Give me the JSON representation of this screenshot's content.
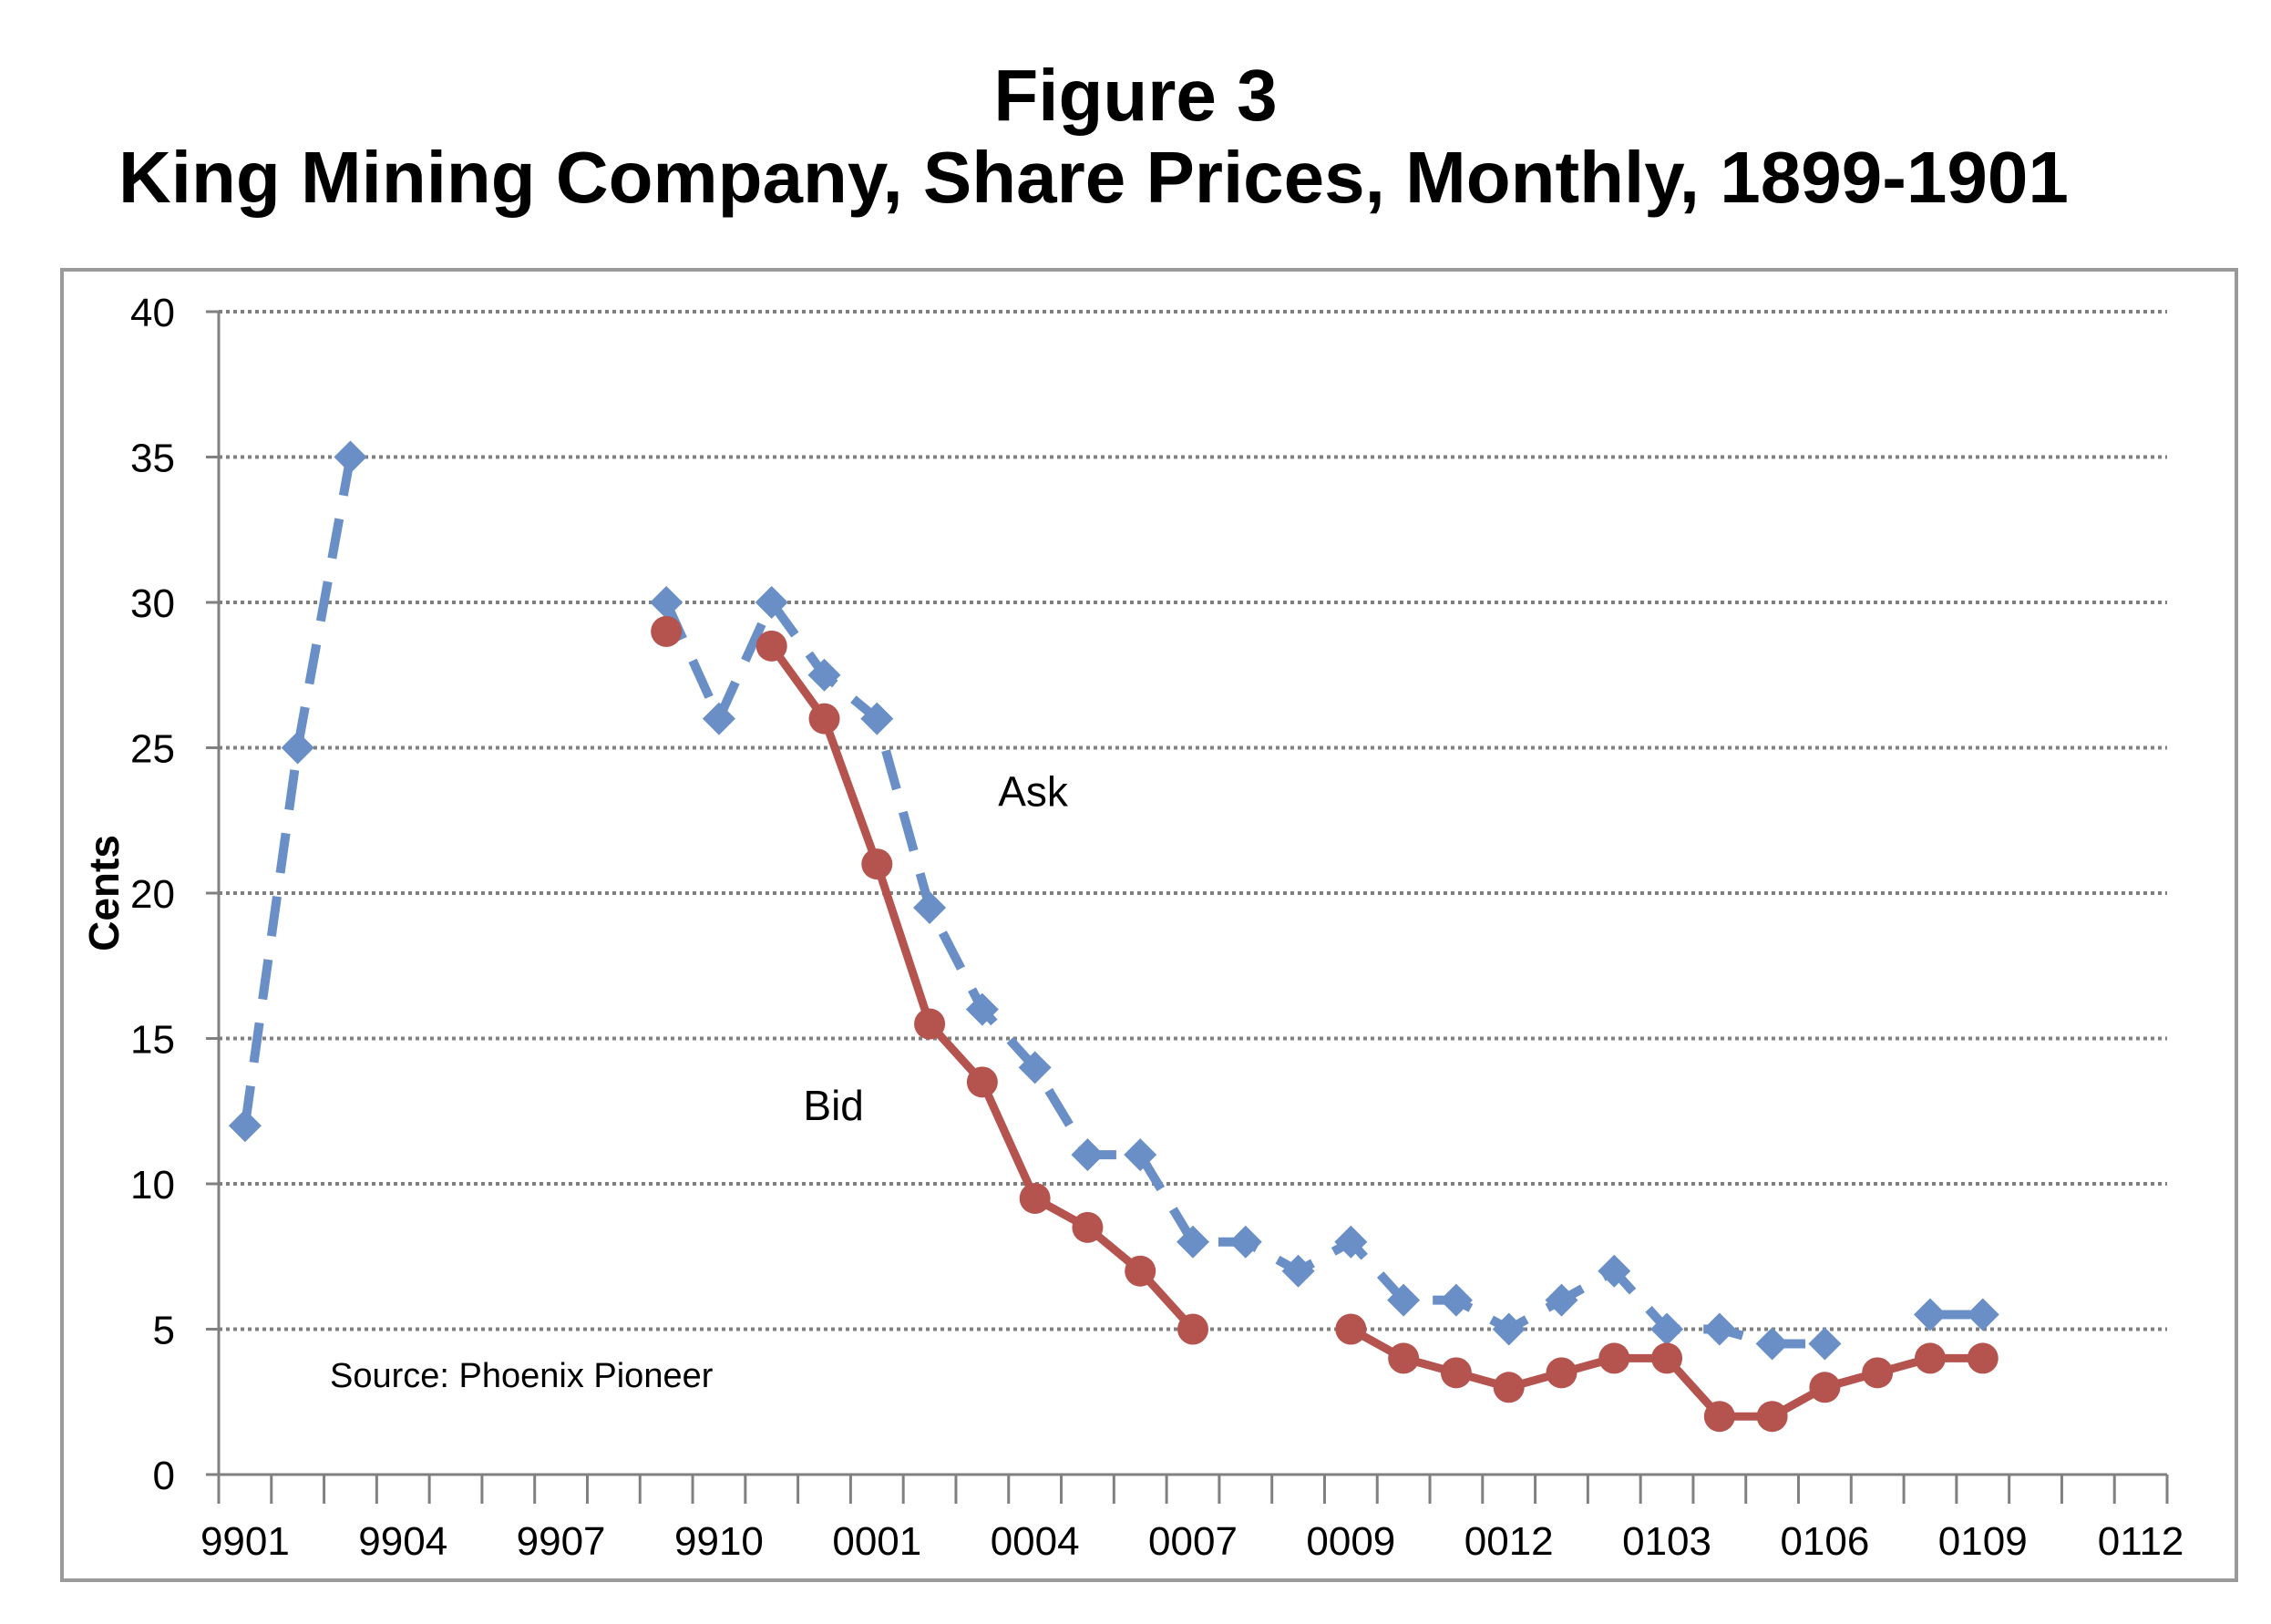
{
  "chart_data": {
    "type": "line",
    "title": "Figure 3",
    "subtitle": "King Mining Company, Share Prices, Monthly, 1899-1901",
    "ylabel": "Cents",
    "xlabel": "",
    "ylim": [
      0,
      40
    ],
    "y_ticks": [
      "0",
      "5",
      "10",
      "15",
      "20",
      "25",
      "30",
      "35",
      "40"
    ],
    "x_tick_labels": [
      "9901",
      "9904",
      "9907",
      "9910",
      "0001",
      "0004",
      "0007",
      "0009",
      "0012",
      "0103",
      "0106",
      "0109",
      "0112"
    ],
    "x_label_months": [
      0,
      3,
      6,
      9,
      12,
      15,
      18,
      21,
      24,
      27,
      30,
      33,
      36
    ],
    "grid": "horizontal dotted",
    "source_note": "Source: Phoenix Pioneer",
    "annotations": [
      {
        "text": "Ask",
        "month": 14.3,
        "value": 23
      },
      {
        "text": "Bid",
        "month": 10.6,
        "value": 12.2
      }
    ],
    "series": [
      {
        "name": "Ask",
        "color": "#6a8fc7",
        "style": "dashed",
        "marker": "diamond",
        "points": [
          [
            0,
            12
          ],
          [
            1,
            25
          ],
          [
            2,
            35
          ],
          [
            8,
            30
          ],
          [
            9,
            26
          ],
          [
            10,
            30
          ],
          [
            11,
            27.5
          ],
          [
            12,
            26
          ],
          [
            13,
            19.5
          ],
          [
            14,
            16
          ],
          [
            15,
            14
          ],
          [
            16,
            11
          ],
          [
            17,
            11
          ],
          [
            18,
            8
          ],
          [
            19,
            8
          ],
          [
            20,
            7
          ],
          [
            21,
            8
          ],
          [
            22,
            6
          ],
          [
            23,
            6
          ],
          [
            24,
            5
          ],
          [
            25,
            6
          ],
          [
            26,
            7
          ],
          [
            27,
            5
          ],
          [
            28,
            5
          ],
          [
            29,
            4.5
          ],
          [
            30,
            4.5
          ],
          [
            32,
            5.5
          ],
          [
            33,
            5.5
          ]
        ]
      },
      {
        "name": "Bid",
        "color": "#b5534e",
        "style": "solid",
        "marker": "circle",
        "points": [
          [
            8,
            29
          ],
          [
            10,
            28.5
          ],
          [
            11,
            26
          ],
          [
            12,
            21
          ],
          [
            13,
            15.5
          ],
          [
            14,
            13.5
          ],
          [
            15,
            9.5
          ],
          [
            16,
            8.5
          ],
          [
            17,
            7
          ],
          [
            18,
            5
          ],
          [
            21,
            5
          ],
          [
            22,
            4
          ],
          [
            23,
            3.5
          ],
          [
            24,
            3
          ],
          [
            25,
            3.5
          ],
          [
            26,
            4
          ],
          [
            27,
            4
          ],
          [
            28,
            2
          ],
          [
            29,
            2
          ],
          [
            30,
            3
          ],
          [
            31,
            3.5
          ],
          [
            32,
            4
          ],
          [
            33,
            4
          ]
        ]
      }
    ]
  }
}
